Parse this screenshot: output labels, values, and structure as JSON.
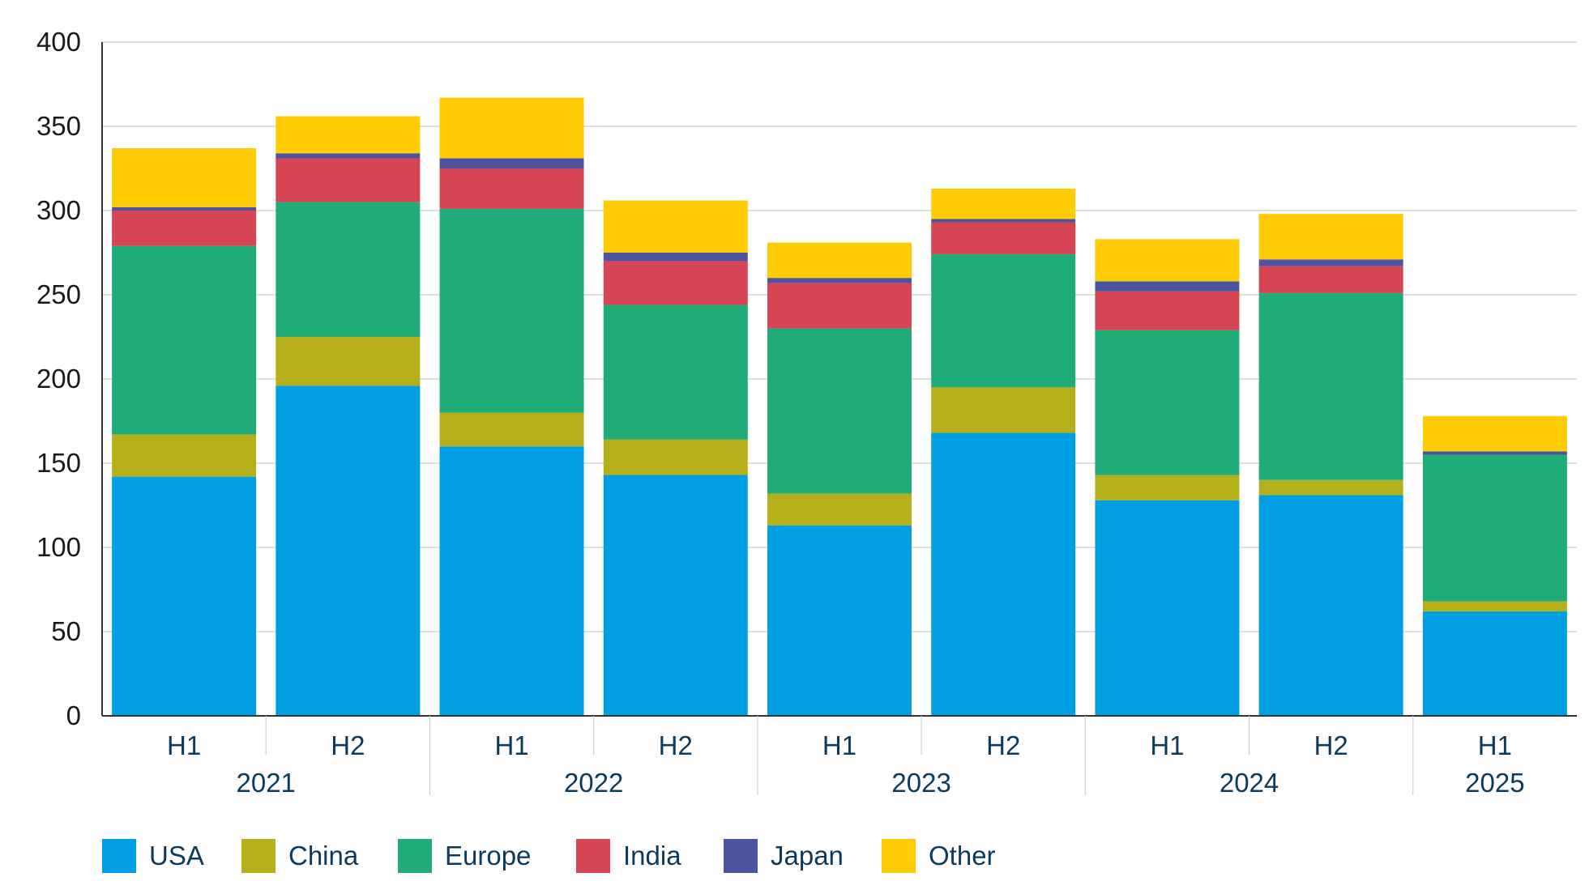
{
  "chart_data": {
    "type": "bar",
    "stacked": true,
    "categories": [
      "H1",
      "H2",
      "H1",
      "H2",
      "H1",
      "H2",
      "H1",
      "H2",
      "H1"
    ],
    "groups": [
      {
        "label": "2021",
        "count": 2
      },
      {
        "label": "2022",
        "count": 2
      },
      {
        "label": "2023",
        "count": 2
      },
      {
        "label": "2024",
        "count": 2
      },
      {
        "label": "2025",
        "count": 1
      }
    ],
    "series": [
      {
        "name": "USA",
        "color": "#009fe3",
        "values": [
          142,
          196,
          160,
          143,
          113,
          168,
          128,
          131,
          62
        ]
      },
      {
        "name": "China",
        "color": "#b5b01a",
        "values": [
          25,
          29,
          20,
          21,
          19,
          27,
          15,
          9,
          6
        ]
      },
      {
        "name": "Europe",
        "color": "#1fac78",
        "values": [
          112,
          80,
          121,
          80,
          98,
          79,
          86,
          111,
          87
        ]
      },
      {
        "name": "India",
        "color": "#d64554",
        "values": [
          21,
          26,
          24,
          26,
          27,
          19,
          23,
          16,
          0
        ]
      },
      {
        "name": "Japan",
        "color": "#4c54a2",
        "values": [
          2,
          3,
          6,
          5,
          3,
          2,
          6,
          4,
          2
        ]
      },
      {
        "name": "Other",
        "color": "#ffcb05",
        "values": [
          35,
          22,
          36,
          31,
          21,
          18,
          25,
          27,
          21
        ]
      }
    ],
    "ylim": [
      0,
      400
    ],
    "yticks": [
      0,
      50,
      100,
      150,
      200,
      250,
      300,
      350,
      400
    ],
    "grid": true,
    "legend": "bottom",
    "title": "",
    "xlabel": "",
    "ylabel": ""
  }
}
